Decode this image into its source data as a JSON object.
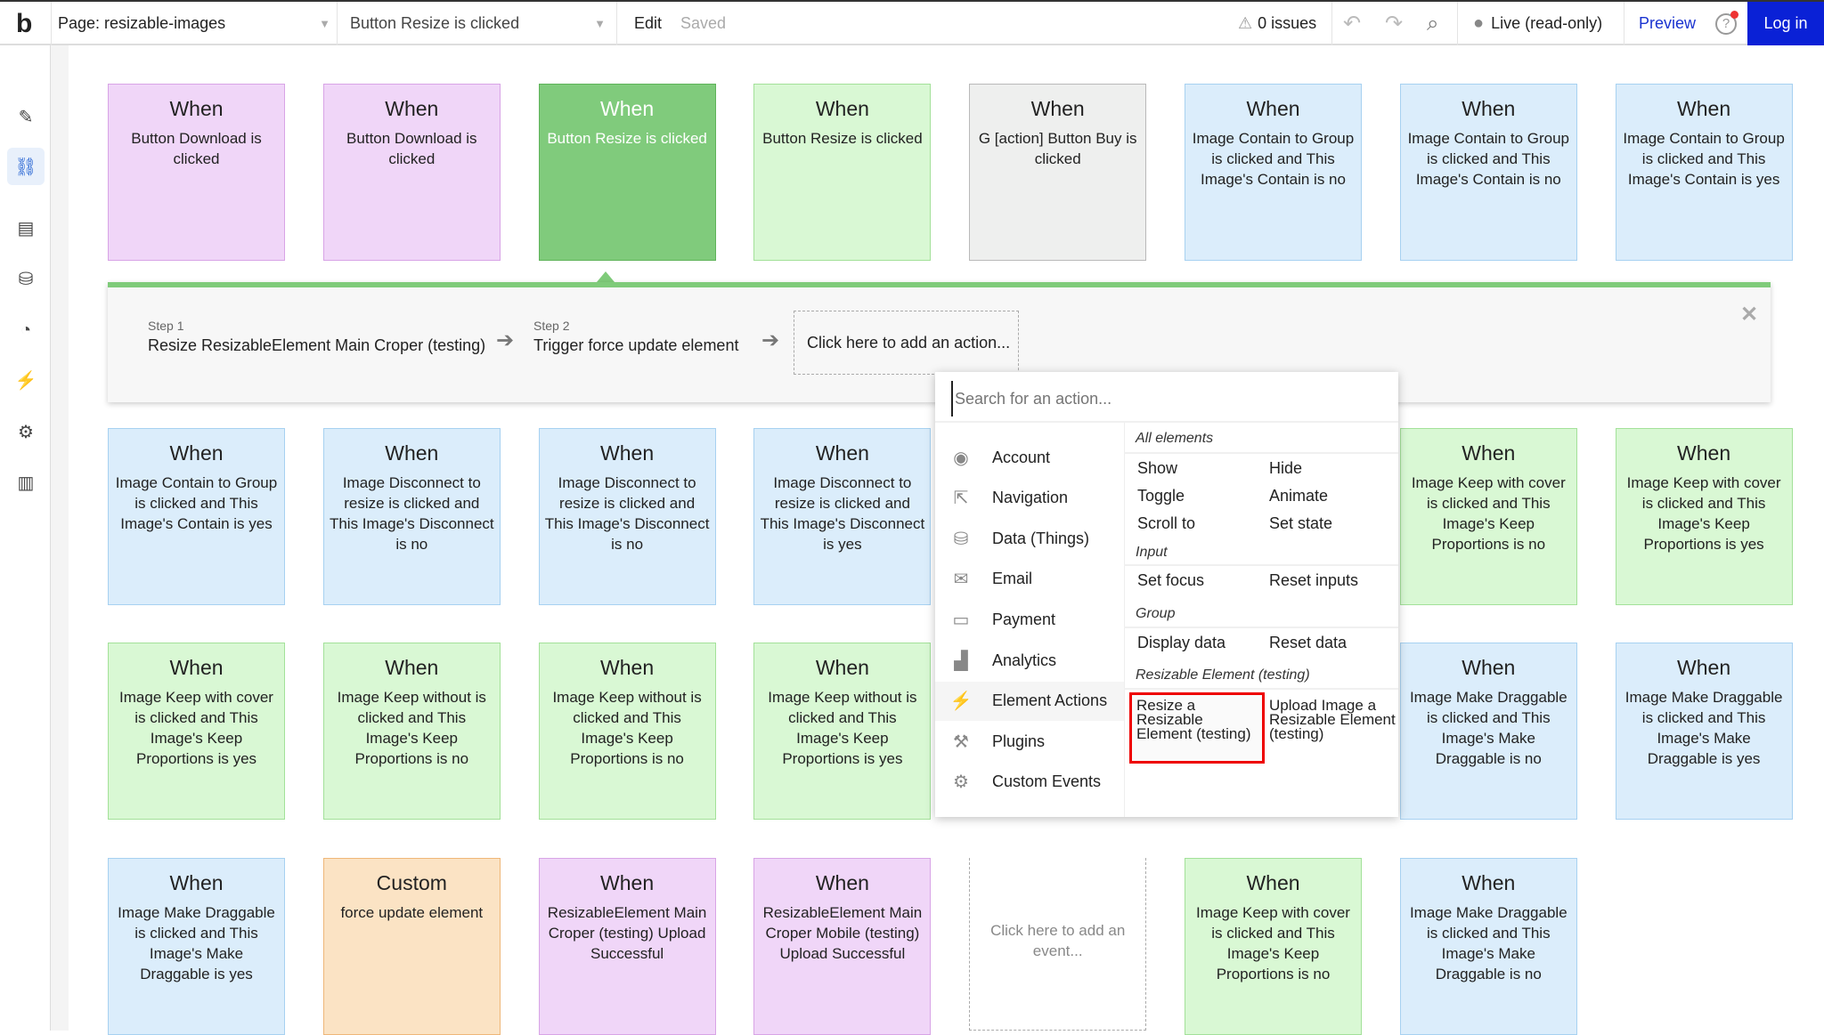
{
  "topbar": {
    "logo": "b",
    "page_select": "Page: resizable-images",
    "event_select": "Button Resize is clicked",
    "edit": "Edit",
    "saved": "Saved",
    "issues": "0 issues",
    "live": "Live (read-only)",
    "preview": "Preview",
    "help": "?",
    "login": "Log in"
  },
  "sidebar": {
    "items": [
      "pencil-icon",
      "workflow-icon",
      "layout-icon",
      "database-icon",
      "palette-icon",
      "plugin-icon",
      "settings-icon",
      "analytics-icon"
    ],
    "active": "workflow-icon"
  },
  "cards": [
    {
      "row": 0,
      "col": 0,
      "color": "pink",
      "title": "When",
      "body": "Button Download is clicked"
    },
    {
      "row": 0,
      "col": 1,
      "color": "pink",
      "title": "When",
      "body": "Button Download is clicked"
    },
    {
      "row": 0,
      "col": 2,
      "color": "selected",
      "title": "When",
      "body": "Button Resize is clicked"
    },
    {
      "row": 0,
      "col": 3,
      "color": "green",
      "title": "When",
      "body": "Button Resize is clicked"
    },
    {
      "row": 0,
      "col": 4,
      "color": "gray",
      "title": "When",
      "body": "G [action] Button Buy is clicked"
    },
    {
      "row": 0,
      "col": 5,
      "color": "blue",
      "title": "When",
      "body": "Image Contain to Group is clicked and This Image's Contain is no"
    },
    {
      "row": 0,
      "col": 6,
      "color": "blue",
      "title": "When",
      "body": "Image Contain to Group is clicked and This Image's Contain is no"
    },
    {
      "row": 0,
      "col": 7,
      "color": "blue",
      "title": "When",
      "body": "Image Contain to Group is clicked and This Image's Contain is yes"
    },
    {
      "row": 1,
      "col": 0,
      "color": "blue",
      "title": "When",
      "body": "Image Contain to Group is clicked and This Image's Contain is yes"
    },
    {
      "row": 1,
      "col": 1,
      "color": "blue",
      "title": "When",
      "body": "Image Disconnect to resize is clicked and This Image's Disconnect is no"
    },
    {
      "row": 1,
      "col": 2,
      "color": "blue",
      "title": "When",
      "body": "Image Disconnect to resize is clicked and This Image's Disconnect is no"
    },
    {
      "row": 1,
      "col": 3,
      "color": "blue",
      "title": "When",
      "body": "Image Disconnect to resize is clicked and This Image's Disconnect is yes"
    },
    {
      "row": 1,
      "col": 5,
      "color": "green",
      "title": "When",
      "body": "Image Keep with cover is clicked and This Image's Keep Proportions is no"
    },
    {
      "row": 1,
      "col": 6,
      "color": "green",
      "title": "When",
      "body": "Image Keep with cover is clicked and This Image's Keep Proportions is no"
    },
    {
      "row": 1,
      "col": 7,
      "color": "green",
      "title": "When",
      "body": "Image Keep with cover is clicked and This Image's Keep Proportions is yes"
    },
    {
      "row": 2,
      "col": 0,
      "color": "green",
      "title": "When",
      "body": "Image Keep with cover is clicked and This Image's Keep Proportions is yes"
    },
    {
      "row": 2,
      "col": 1,
      "color": "green",
      "title": "When",
      "body": "Image Keep without is clicked and This Image's Keep Proportions is no"
    },
    {
      "row": 2,
      "col": 2,
      "color": "green",
      "title": "When",
      "body": "Image Keep without is clicked and This Image's Keep Proportions is no"
    },
    {
      "row": 2,
      "col": 3,
      "color": "green",
      "title": "When",
      "body": "Image Keep without is clicked and This Image's Keep Proportions is yes"
    },
    {
      "row": 2,
      "col": 5,
      "color": "blue",
      "title": "When",
      "body": "Image Make Draggable is clicked and This Image's Make Draggable is no"
    },
    {
      "row": 2,
      "col": 6,
      "color": "blue",
      "title": "When",
      "body": "Image Make Draggable is clicked and This Image's Make Draggable is no"
    },
    {
      "row": 2,
      "col": 7,
      "color": "blue",
      "title": "When",
      "body": "Image Make Draggable is clicked and This Image's Make Draggable is yes"
    },
    {
      "row": 3,
      "col": 0,
      "color": "blue",
      "title": "When",
      "body": "Image Make Draggable is clicked and This Image's Make Draggable is yes"
    },
    {
      "row": 3,
      "col": 1,
      "color": "orange",
      "title": "Custom",
      "body": "force update element"
    },
    {
      "row": 3,
      "col": 2,
      "color": "pink",
      "title": "When",
      "body": "ResizableElement Main Croper (testing) Upload Successful"
    },
    {
      "row": 3,
      "col": 3,
      "color": "pink",
      "title": "When",
      "body": "ResizableElement Main Croper Mobile (testing) Upload Successful"
    },
    {
      "row": 3,
      "col": 4,
      "color": "dashed",
      "title": "",
      "body": "Click here to add an event..."
    }
  ],
  "colors": {
    "pink": [
      "#f0d6f8",
      "#d8a4e6",
      "#222"
    ],
    "selected": [
      "#80cb7c",
      "#5fb35a",
      "#fff"
    ],
    "green": [
      "#d9f8d4",
      "#a3e199",
      "#222"
    ],
    "gray": [
      "#eeefee",
      "#b9b9b9",
      "#222"
    ],
    "blue": [
      "#dbedfb",
      "#a7d1f1",
      "#222"
    ],
    "orange": [
      "#fbe3c4",
      "#efb779",
      "#222"
    ],
    "dashed": [
      "#fff",
      "#aaa",
      "#888"
    ],
    "accent": "#7fcb7a",
    "login": "#0a21d6",
    "highlight": "#ee0000"
  },
  "steps": {
    "step1_label": "Step 1",
    "step1_text": "Resize ResizableElement Main Croper (testing)",
    "step2_label": "Step 2",
    "step2_text": "Trigger force update element",
    "add_action": "Click here to add an action..."
  },
  "popup": {
    "search_placeholder": "Search for an action...",
    "categories": [
      {
        "icon": "account-icon",
        "label": "Account"
      },
      {
        "icon": "navigation-icon",
        "label": "Navigation"
      },
      {
        "icon": "database-icon",
        "label": "Data (Things)"
      },
      {
        "icon": "email-icon",
        "label": "Email"
      },
      {
        "icon": "payment-icon",
        "label": "Payment"
      },
      {
        "icon": "analytics-icon",
        "label": "Analytics"
      },
      {
        "icon": "element-actions-icon",
        "label": "Element Actions"
      },
      {
        "icon": "plugins-icon",
        "label": "Plugins"
      },
      {
        "icon": "custom-events-icon",
        "label": "Custom Events"
      }
    ],
    "selected_category": "Element Actions",
    "sections": {
      "all": {
        "title": "All elements",
        "actions": [
          "Show",
          "Hide",
          "Toggle",
          "Animate",
          "Scroll to",
          "Set state"
        ]
      },
      "input": {
        "title": "Input",
        "actions": [
          "Set focus",
          "Reset inputs"
        ]
      },
      "group": {
        "title": "Group",
        "actions": [
          "Display data",
          "Reset data"
        ]
      },
      "resizable": {
        "title": "Resizable Element (testing)",
        "actions": [
          "Resize a Resizable Element (testing)",
          "Upload Image a Resizable Element (testing)"
        ]
      }
    }
  }
}
